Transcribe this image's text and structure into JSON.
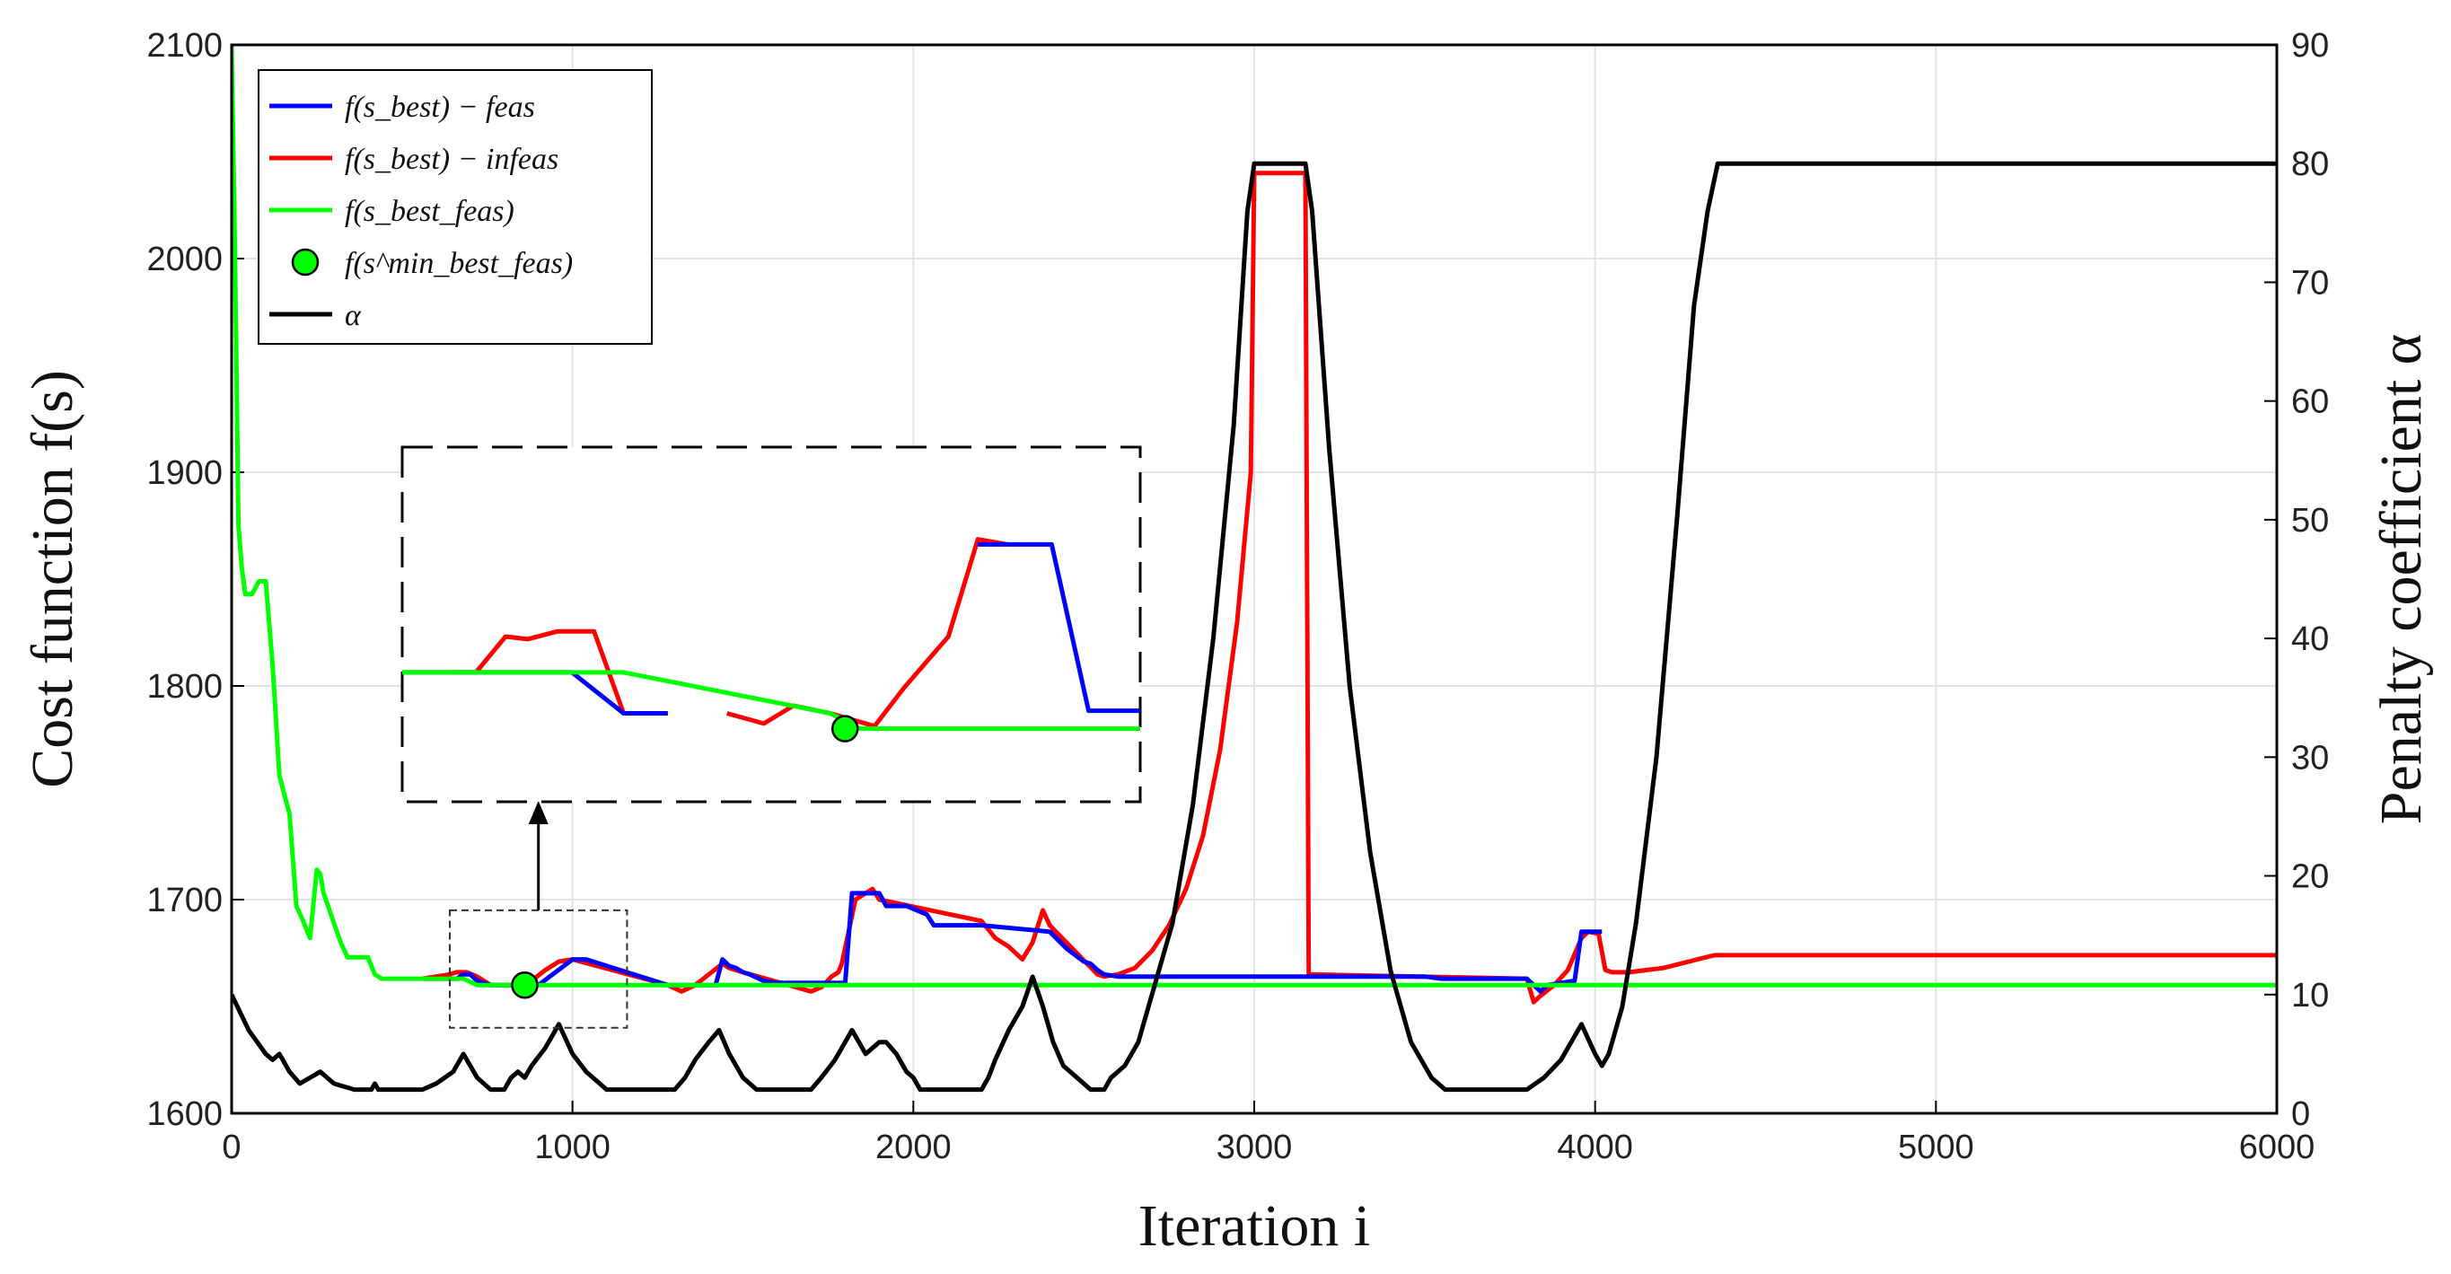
{
  "chart_data": {
    "type": "line",
    "xlabel": "Iteration i",
    "ylabel_left": "Cost function f(s)",
    "ylabel_right": "Penalty coefficient α",
    "xlim": [
      0,
      6000
    ],
    "ylim_left": [
      1600,
      2100
    ],
    "ylim_right": [
      0,
      90
    ],
    "x_ticks": [
      0,
      1000,
      2000,
      3000,
      4000,
      5000,
      6000
    ],
    "y_ticks_left": [
      1600,
      1700,
      1800,
      1900,
      2000,
      2100
    ],
    "y_ticks_right": [
      0,
      10,
      20,
      30,
      40,
      50,
      60,
      70,
      80,
      90
    ],
    "grid": true,
    "legend_position": "top-left",
    "colors": {
      "feas": "#0000ff",
      "infeas": "#ff0000",
      "best_feas": "#00ff00",
      "alpha": "#000000"
    },
    "legend": [
      {
        "key": "feas",
        "label": "f(s_best) − feas"
      },
      {
        "key": "infeas",
        "label": "f(s_best) − infeas"
      },
      {
        "key": "best_feas",
        "label": "f(s_best_feas)"
      },
      {
        "key": "min",
        "label": "f(s^min_best_feas)"
      },
      {
        "key": "alpha",
        "label": "α"
      }
    ],
    "series": [
      {
        "name": "f(s_best) − infeas",
        "key": "infeas",
        "axis": "left",
        "x": [
          560,
          600,
          640,
          660,
          690,
          720,
          760,
          800,
          840,
          880,
          920,
          960,
          1000,
          1280,
          1320,
          1360,
          1400,
          1440,
          1460,
          1500,
          1700,
          1730,
          1760,
          1780,
          1790,
          1830,
          1880,
          1900,
          2200,
          2240,
          2280,
          2320,
          2350,
          2380,
          2400,
          2540,
          2560,
          2600,
          2650,
          2700,
          2750,
          2800,
          2850,
          2900,
          2950,
          2990,
          3000,
          3150,
          3160,
          3800,
          3820,
          3840,
          3880,
          3920,
          3960,
          3980,
          4010,
          4030,
          4050,
          4100,
          4150,
          4200,
          4250,
          4300,
          4350,
          6000
        ],
        "y": [
          1663,
          1664,
          1665,
          1666,
          1666,
          1664,
          1660,
          1660,
          1660,
          1662,
          1667,
          1671,
          1672,
          1660,
          1657,
          1660,
          1665,
          1670,
          1668,
          1666,
          1657,
          1659,
          1664,
          1666,
          1670,
          1700,
          1705,
          1700,
          1690,
          1682,
          1678,
          1672,
          1680,
          1695,
          1688,
          1665,
          1664,
          1665,
          1668,
          1676,
          1688,
          1705,
          1730,
          1770,
          1830,
          1900,
          2040,
          2040,
          1665,
          1663,
          1652,
          1655,
          1660,
          1667,
          1682,
          1685,
          1684,
          1667,
          1666,
          1666,
          1667,
          1668,
          1670,
          1672,
          1674,
          1674
        ]
      },
      {
        "name": "f(s_best) − feas",
        "key": "feas",
        "axis": "left",
        "x": [
          560,
          660,
          680,
          700,
          720,
          760,
          800,
          840,
          900,
          1000,
          1010,
          1040,
          1280,
          1420,
          1440,
          1460,
          1480,
          1500,
          1520,
          1560,
          1600,
          1800,
          1820,
          1900,
          1920,
          1980,
          2040,
          2060,
          2200,
          2400,
          2450,
          2500,
          2520,
          2540,
          2560,
          2600,
          3160,
          3200,
          3500,
          3550,
          3800,
          3820,
          3840,
          3860,
          3940,
          3960,
          4020
        ],
        "y": [
          1663,
          1663,
          1665,
          1665,
          1662,
          1660,
          1660,
          1660,
          1660,
          1672,
          1672,
          1672,
          1660,
          1660,
          1672,
          1669,
          1668,
          1666,
          1665,
          1662,
          1661,
          1661,
          1703,
          1703,
          1697,
          1697,
          1693,
          1688,
          1688,
          1685,
          1677,
          1671,
          1670,
          1667,
          1665,
          1664,
          1664,
          1664,
          1664,
          1663,
          1663,
          1660,
          1657,
          1660,
          1662,
          1685,
          1685
        ]
      },
      {
        "name": "f(s_best_feas)",
        "key": "best_feas",
        "axis": "left",
        "x": [
          0,
          10,
          20,
          30,
          40,
          60,
          80,
          100,
          120,
          140,
          170,
          190,
          210,
          230,
          250,
          260,
          270,
          300,
          320,
          340,
          360,
          380,
          400,
          420,
          440,
          540,
          600,
          640,
          680,
          720,
          1800,
          1820,
          6000
        ],
        "y": [
          2100,
          2000,
          1875,
          1855,
          1843,
          1843,
          1849,
          1849,
          1810,
          1758,
          1740,
          1697,
          1690,
          1682,
          1714,
          1712,
          1703,
          1689,
          1680,
          1673,
          1673,
          1673,
          1673,
          1665,
          1663,
          1663,
          1663,
          1663,
          1663,
          1660,
          1660,
          1660,
          1660
        ]
      },
      {
        "name": "α",
        "key": "alpha",
        "axis": "right",
        "x": [
          0,
          50,
          100,
          120,
          140,
          170,
          200,
          230,
          260,
          300,
          360,
          400,
          410,
          420,
          430,
          460,
          500,
          560,
          600,
          650,
          680,
          720,
          760,
          800,
          820,
          840,
          860,
          880,
          920,
          960,
          1000,
          1040,
          1080,
          1100,
          1120,
          1300,
          1330,
          1360,
          1400,
          1430,
          1460,
          1500,
          1540,
          1580,
          1700,
          1730,
          1770,
          1820,
          1860,
          1900,
          1920,
          1950,
          1980,
          2000,
          2020,
          2200,
          2220,
          2240,
          2280,
          2320,
          2350,
          2380,
          2410,
          2440,
          2480,
          2520,
          2560,
          2580,
          2620,
          2660,
          2700,
          2760,
          2820,
          2880,
          2940,
          2980,
          3000,
          3150,
          3170,
          3220,
          3280,
          3340,
          3400,
          3460,
          3520,
          3560,
          3800,
          3850,
          3900,
          3960,
          4000,
          4020,
          4040,
          4080,
          4120,
          4180,
          4240,
          4290,
          4330,
          4360,
          6000
        ],
        "y": [
          10,
          7,
          5,
          4.5,
          5,
          3.5,
          2.5,
          3,
          3.5,
          2.5,
          2,
          2,
          2,
          2.5,
          2,
          2,
          2,
          2,
          2.5,
          3.5,
          5,
          3,
          2,
          2,
          3,
          3.5,
          3,
          4,
          5.5,
          7.5,
          5,
          3.5,
          2.5,
          2,
          2,
          2,
          3,
          4.5,
          6,
          7,
          5,
          3,
          2,
          2,
          2,
          3,
          4.5,
          7,
          5,
          6,
          6,
          5,
          3.5,
          3,
          2,
          2,
          3,
          4.5,
          7,
          9,
          11.5,
          9,
          6,
          4,
          3,
          2,
          2,
          3,
          4,
          6,
          10,
          16,
          26,
          40,
          58,
          76,
          80,
          80,
          76,
          56,
          36,
          22,
          12,
          6,
          3,
          2,
          2,
          3,
          4.5,
          7.5,
          5,
          4,
          5,
          9,
          16,
          30,
          50,
          68,
          76,
          80,
          80
        ]
      }
    ],
    "min_point": {
      "x": 860,
      "y": 1660,
      "label": "f(s^min_best_feas)"
    },
    "inset": {
      "x_range": [
        640,
        1180
      ],
      "y_range": [
        1630,
        1690
      ],
      "feas": {
        "x": [
          0,
          0.22,
          0.23,
          0.3,
          0.36
        ],
        "y": [
          0.26,
          0.26,
          0.26,
          0.1,
          0.1
        ]
      },
      "infeas_a": {
        "x": [
          0.07,
          0.1,
          0.14,
          0.17,
          0.21,
          0.26,
          0.3
        ],
        "y": [
          0.26,
          0.26,
          0.4,
          0.39,
          0.42,
          0.42,
          0.1
        ]
      },
      "flat_best": {
        "x": [
          0,
          0.08,
          0.3,
          0.58,
          0.62,
          1.0
        ],
        "y": [
          0.26,
          0.26,
          0.26,
          0.1,
          0.04,
          0.04
        ]
      },
      "infeas_b": {
        "x": [
          0.44,
          0.49,
          0.53,
          0.58,
          0.64,
          0.68,
          0.74,
          0.78,
          0.82
        ],
        "y": [
          0.1,
          0.06,
          0.13,
          0.1,
          0.05,
          0.2,
          0.4,
          0.78,
          0.76
        ]
      },
      "feas_b": {
        "x": [
          0.78,
          0.88,
          0.93,
          1.0
        ],
        "y": [
          0.76,
          0.76,
          0.11,
          0.11
        ]
      },
      "dot": {
        "x": 0.6,
        "y": 0.04
      }
    }
  }
}
